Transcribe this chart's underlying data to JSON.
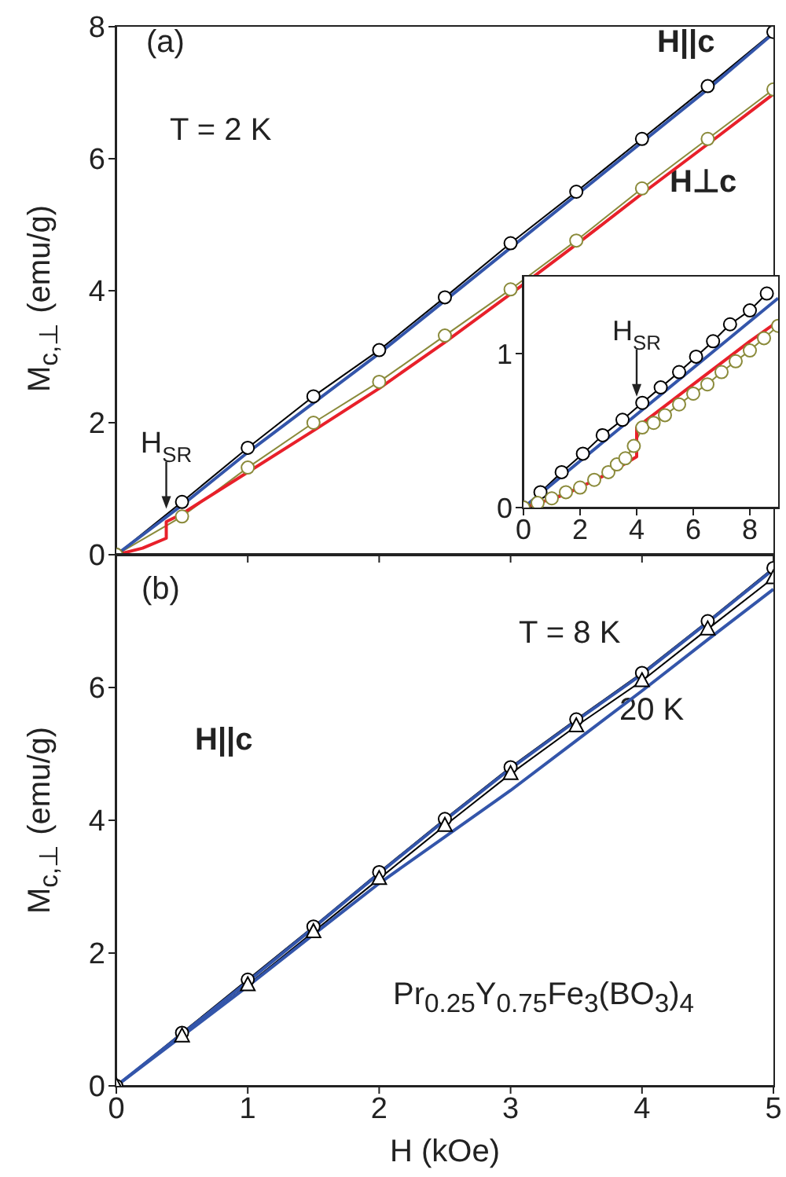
{
  "chart_data": [
    {
      "type": "line",
      "ylabel": "M$_{c,⊥}$ (emu/g)",
      "xlim": [
        0,
        5
      ],
      "xticks": [
        0,
        1,
        2,
        3,
        4,
        5
      ],
      "ylim": [
        0,
        8
      ],
      "yticks": [
        0,
        2,
        4,
        6,
        8
      ],
      "tick_labels": "y",
      "annotations": [
        "(a)",
        "T = 2 K",
        "H||c",
        "H⊥c",
        {
          "text": "H$_{SR}$",
          "x": 0.38,
          "y": 0.6
        }
      ],
      "series": [
        {
          "color": "#000000",
          "marker": "circle",
          "x": [
            0,
            0.5,
            1,
            1.5,
            2,
            2.5,
            3,
            3.5,
            4,
            4.5,
            5
          ],
          "values": [
            0,
            0.8,
            1.62,
            2.4,
            3.1,
            3.9,
            4.72,
            5.5,
            6.3,
            7.1,
            7.92
          ]
        },
        {
          "color": "#8a8a3a",
          "marker": "circle",
          "x": [
            0,
            0.5,
            1,
            1.5,
            2,
            2.5,
            3,
            3.5,
            4,
            4.5,
            5
          ],
          "values": [
            0,
            0.58,
            1.32,
            2.0,
            2.62,
            3.32,
            4.02,
            4.76,
            5.55,
            6.3,
            7.05
          ]
        },
        {
          "color": "#3355aa",
          "marker": "none",
          "x": [
            0,
            0.5,
            1,
            1.5,
            2,
            2.5,
            3,
            3.5,
            4,
            4.5,
            5
          ],
          "values": [
            0,
            0.75,
            1.55,
            2.3,
            3.05,
            3.85,
            4.65,
            5.45,
            6.25,
            7.05,
            7.9
          ]
        },
        {
          "color": "#e8202a",
          "marker": "none",
          "x": [
            0,
            0.2,
            0.38,
            0.38,
            0.5,
            1,
            1.5,
            2,
            2.5,
            3,
            3.5,
            4,
            4.5,
            5
          ],
          "values": [
            0,
            0.1,
            0.25,
            0.5,
            0.62,
            1.25,
            1.88,
            2.52,
            3.22,
            3.95,
            4.7,
            5.47,
            6.22,
            6.98
          ]
        }
      ]
    },
    {
      "type": "line",
      "xlim": [
        0,
        9
      ],
      "xticks": [
        0,
        2,
        4,
        6,
        8
      ],
      "ylim": [
        0,
        1.5
      ],
      "yticks": [
        0,
        1
      ],
      "annotations": [
        {
          "text": "H$_{SR}$",
          "x": 4,
          "y": 0.68
        }
      ],
      "series": [
        {
          "color": "#000000",
          "marker": "circle",
          "x": [
            0,
            0.6,
            1.35,
            2.1,
            2.8,
            3.5,
            4.2,
            4.85,
            5.5,
            6.1,
            6.7,
            7.3,
            8,
            8.6
          ],
          "values": [
            0,
            0.1,
            0.23,
            0.35,
            0.47,
            0.57,
            0.68,
            0.78,
            0.88,
            0.98,
            1.08,
            1.19,
            1.28,
            1.39
          ]
        },
        {
          "color": "#8a8a3a",
          "marker": "circle",
          "x": [
            0,
            0.5,
            1,
            1.5,
            2,
            2.5,
            3,
            3.3,
            3.6,
            3.9,
            4.2,
            4.6,
            5,
            5.5,
            6,
            6.5,
            7,
            7.5,
            8,
            8.5,
            9
          ],
          "values": [
            0,
            0.03,
            0.06,
            0.1,
            0.13,
            0.18,
            0.23,
            0.28,
            0.32,
            0.4,
            0.52,
            0.55,
            0.6,
            0.67,
            0.74,
            0.8,
            0.88,
            0.95,
            1.02,
            1.1,
            1.18
          ]
        },
        {
          "color": "#3355aa",
          "marker": "none",
          "x": [
            0,
            9
          ],
          "values": [
            0,
            1.36
          ]
        },
        {
          "color": "#e8202a",
          "marker": "none",
          "x": [
            0,
            1.4,
            3,
            4,
            4,
            6,
            8,
            9
          ],
          "values": [
            0,
            0.08,
            0.22,
            0.33,
            0.52,
            0.8,
            1.08,
            1.21
          ]
        }
      ]
    },
    {
      "type": "line",
      "xlabel": "H (kOe)",
      "ylabel": "M$_{c,⊥}$ (emu/g)",
      "xlim": [
        0,
        5
      ],
      "xticks": [
        0,
        1,
        2,
        3,
        4,
        5
      ],
      "ylim": [
        0,
        8
      ],
      "yticks": [
        0,
        2,
        4,
        6
      ],
      "annotations": [
        "(b)",
        "T = 8 K",
        "20 K",
        "H||c",
        "Pr$_{0.25}$Y$_{0.75}$Fe$_{3}$(BO$_{3}$)$_{4}$"
      ],
      "series": [
        {
          "color": "#000000",
          "marker": "circle",
          "x": [
            0,
            0.5,
            1,
            1.5,
            2,
            2.5,
            3,
            3.5,
            4,
            4.5,
            5
          ],
          "values": [
            0,
            0.8,
            1.6,
            2.4,
            3.22,
            4.02,
            4.8,
            5.52,
            6.22,
            7.0,
            7.8
          ]
        },
        {
          "color": "#000000",
          "marker": "triangle",
          "x": [
            0,
            0.5,
            1,
            1.5,
            2,
            2.5,
            3,
            3.5,
            4,
            4.5,
            5
          ],
          "values": [
            0,
            0.75,
            1.52,
            2.32,
            3.12,
            3.92,
            4.7,
            5.42,
            6.1,
            6.88,
            7.65
          ]
        },
        {
          "color": "#3355aa",
          "marker": "none",
          "x": [
            0,
            0.5,
            1,
            1.5,
            2,
            2.5,
            3,
            3.5,
            4,
            4.5,
            5
          ],
          "values": [
            0,
            0.78,
            1.57,
            2.38,
            3.2,
            4.0,
            4.78,
            5.5,
            6.2,
            6.98,
            7.78
          ]
        },
        {
          "color": "#3355aa",
          "marker": "none",
          "x": [
            0,
            0.5,
            1,
            1.5,
            2,
            2.5,
            3,
            3.5,
            4,
            4.5,
            5
          ],
          "values": [
            0,
            0.75,
            1.5,
            2.28,
            3.05,
            3.75,
            4.45,
            5.2,
            5.95,
            6.72,
            7.48
          ]
        }
      ]
    }
  ]
}
